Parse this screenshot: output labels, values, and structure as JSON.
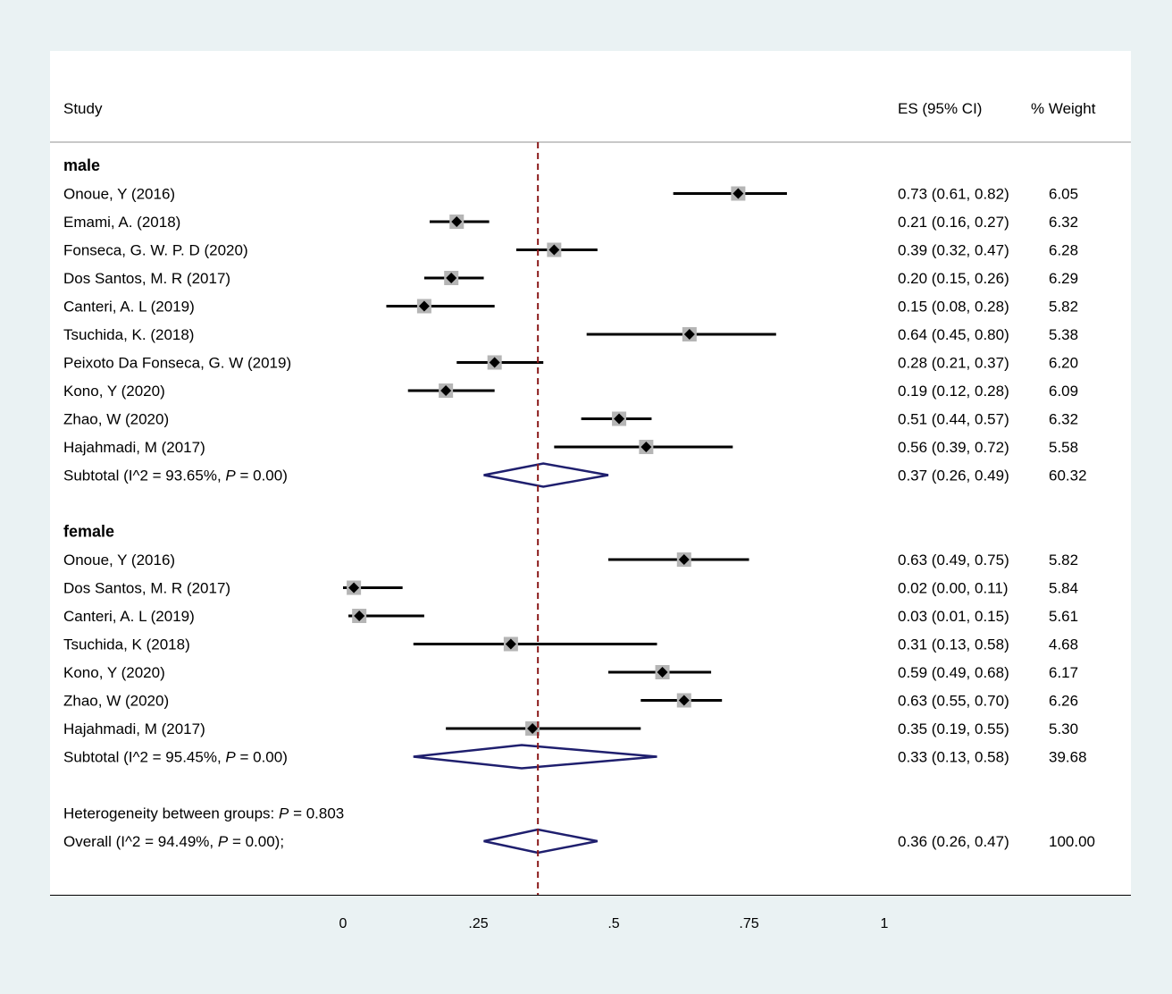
{
  "chart_data": {
    "type": "forest",
    "headers": {
      "study": "Study",
      "es": "ES (95% CI)",
      "weight": "% Weight"
    },
    "xticks": [
      {
        "value": 0,
        "label": "0"
      },
      {
        "value": 0.25,
        "label": ".25"
      },
      {
        "value": 0.5,
        "label": ".5"
      },
      {
        "value": 0.75,
        "label": ".75"
      },
      {
        "value": 1,
        "label": "1"
      }
    ],
    "overall_line": 0.36,
    "colors": {
      "ref_line": "#8b1a1a",
      "diamond": "#1f1f6e",
      "box": "#b5b5b5",
      "ci": "#000000"
    },
    "groups": [
      {
        "name": "male",
        "studies": [
          {
            "label": "Onoue, Y (2016)",
            "es": 0.73,
            "lo": 0.61,
            "hi": 0.82,
            "es_text": "0.73 (0.61, 0.82)",
            "weight": "6.05"
          },
          {
            "label": "Emami, A. (2018)",
            "es": 0.21,
            "lo": 0.16,
            "hi": 0.27,
            "es_text": "0.21 (0.16, 0.27)",
            "weight": "6.32"
          },
          {
            "label": "Fonseca, G. W. P. D (2020)",
            "es": 0.39,
            "lo": 0.32,
            "hi": 0.47,
            "es_text": "0.39 (0.32, 0.47)",
            "weight": "6.28"
          },
          {
            "label": "Dos Santos, M. R (2017)",
            "es": 0.2,
            "lo": 0.15,
            "hi": 0.26,
            "es_text": "0.20 (0.15, 0.26)",
            "weight": "6.29"
          },
          {
            "label": "Canteri, A. L (2019)",
            "es": 0.15,
            "lo": 0.08,
            "hi": 0.28,
            "es_text": "0.15 (0.08, 0.28)",
            "weight": "5.82"
          },
          {
            "label": "Tsuchida, K. (2018)",
            "es": 0.64,
            "lo": 0.45,
            "hi": 0.8,
            "es_text": "0.64 (0.45, 0.80)",
            "weight": "5.38"
          },
          {
            "label": "Peixoto Da Fonseca, G. W (2019)",
            "es": 0.28,
            "lo": 0.21,
            "hi": 0.37,
            "es_text": "0.28 (0.21, 0.37)",
            "weight": "6.20"
          },
          {
            "label": "Kono, Y (2020)",
            "es": 0.19,
            "lo": 0.12,
            "hi": 0.28,
            "es_text": "0.19 (0.12, 0.28)",
            "weight": "6.09"
          },
          {
            "label": "Zhao, W (2020)",
            "es": 0.51,
            "lo": 0.44,
            "hi": 0.57,
            "es_text": "0.51 (0.44, 0.57)",
            "weight": "6.32"
          },
          {
            "label": "Hajahmadi, M (2017)",
            "es": 0.56,
            "lo": 0.39,
            "hi": 0.72,
            "es_text": "0.56 (0.39, 0.72)",
            "weight": "5.58"
          }
        ],
        "subtotal": {
          "label_prefix": "Subtotal  (I^2 = 93.65%, ",
          "p_letter": "P",
          "label_suffix": " = 0.00)",
          "es": 0.37,
          "lo": 0.26,
          "hi": 0.49,
          "es_text": "0.37 (0.26, 0.49)",
          "weight": "60.32"
        }
      },
      {
        "name": "female",
        "studies": [
          {
            "label": "Onoue, Y (2016)",
            "es": 0.63,
            "lo": 0.49,
            "hi": 0.75,
            "es_text": "0.63 (0.49, 0.75)",
            "weight": "5.82"
          },
          {
            "label": "Dos Santos, M. R (2017)",
            "es": 0.02,
            "lo": 0.0,
            "hi": 0.11,
            "es_text": "0.02 (0.00, 0.11)",
            "weight": "5.84"
          },
          {
            "label": "Canteri, A. L (2019)",
            "es": 0.03,
            "lo": 0.01,
            "hi": 0.15,
            "es_text": "0.03 (0.01, 0.15)",
            "weight": "5.61"
          },
          {
            "label": "Tsuchida, K (2018)",
            "es": 0.31,
            "lo": 0.13,
            "hi": 0.58,
            "es_text": "0.31 (0.13, 0.58)",
            "weight": "4.68"
          },
          {
            "label": "Kono, Y (2020)",
            "es": 0.59,
            "lo": 0.49,
            "hi": 0.68,
            "es_text": "0.59 (0.49, 0.68)",
            "weight": "6.17"
          },
          {
            "label": "Zhao, W (2020)",
            "es": 0.63,
            "lo": 0.55,
            "hi": 0.7,
            "es_text": "0.63 (0.55, 0.70)",
            "weight": "6.26"
          },
          {
            "label": "Hajahmadi, M (2017)",
            "es": 0.35,
            "lo": 0.19,
            "hi": 0.55,
            "es_text": "0.35 (0.19, 0.55)",
            "weight": "5.30"
          }
        ],
        "subtotal": {
          "label_prefix": "Subtotal  (I^2 = 95.45%, ",
          "p_letter": "P",
          "label_suffix": " = 0.00)",
          "es": 0.33,
          "lo": 0.13,
          "hi": 0.58,
          "es_text": "0.33 (0.13, 0.58)",
          "weight": "39.68"
        }
      }
    ],
    "heterogeneity": {
      "label_prefix": "Heterogeneity between groups: ",
      "p_letter": "P",
      "label_suffix": " = 0.803"
    },
    "overall": {
      "label_prefix": "Overall  (I^2 = 94.49%, ",
      "p_letter": "P",
      "label_suffix": " = 0.00);",
      "es": 0.36,
      "lo": 0.26,
      "hi": 0.47,
      "es_text": "0.36 (0.26, 0.47)",
      "weight": "100.00"
    }
  }
}
